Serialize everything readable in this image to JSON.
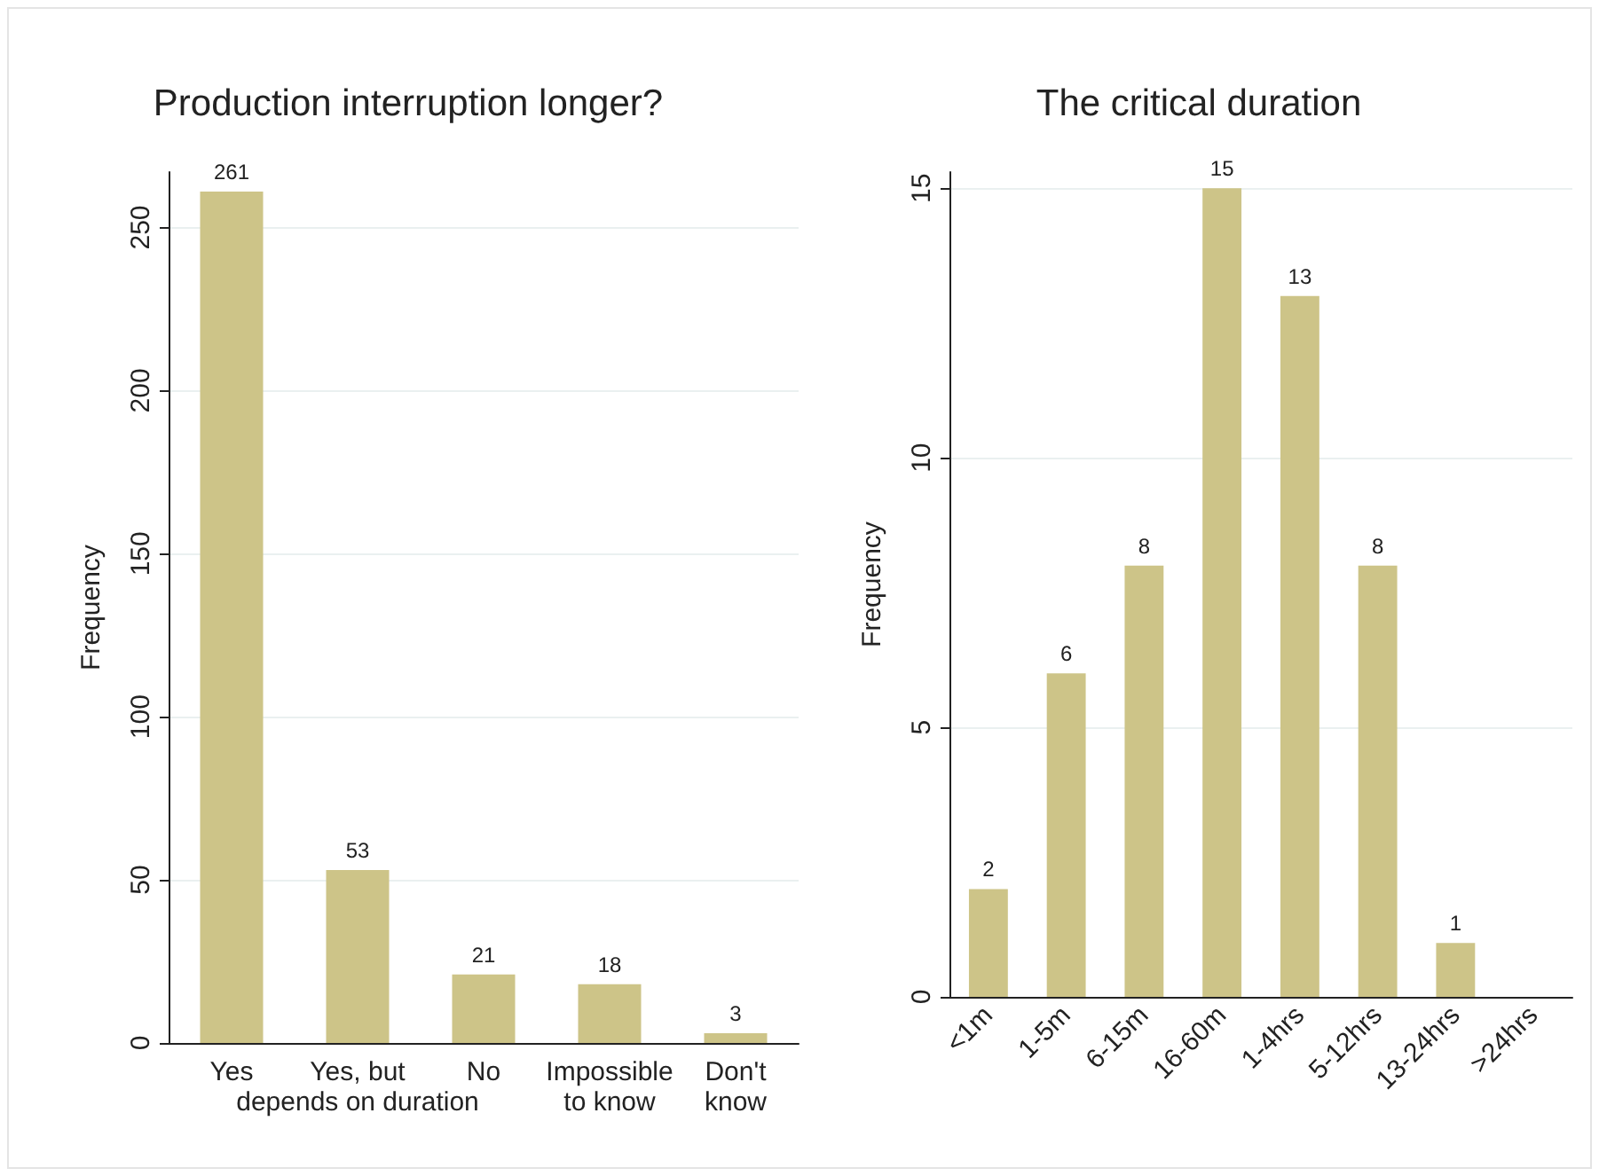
{
  "chart_data": [
    {
      "type": "bar",
      "title": "Production interruption longer?",
      "ylabel": "Frequency",
      "categories": [
        "Yes",
        "Yes, but\ndepends on duration",
        "No",
        "Impossible\nto know",
        "Don't\nknow"
      ],
      "values": [
        261,
        53,
        21,
        18,
        3
      ],
      "color": "#cdc488",
      "ylim": [
        0,
        267
      ],
      "yticks": [
        0,
        50,
        100,
        150,
        200,
        250
      ],
      "grid": "y",
      "data_labels": true
    },
    {
      "type": "bar",
      "title": "The critical duration",
      "ylabel": "Frequency",
      "categories": [
        "<1m",
        "1-5m",
        "6-15m",
        "16-60m",
        "1-4hrs",
        "5-12hrs",
        "13-24hrs",
        ">24hrs"
      ],
      "values": [
        2,
        6,
        8,
        15,
        13,
        8,
        1,
        null
      ],
      "color": "#cdc488",
      "ylim": [
        0,
        15.3
      ],
      "yticks": [
        0,
        5,
        10,
        15
      ],
      "grid": "y",
      "data_labels": true
    }
  ]
}
